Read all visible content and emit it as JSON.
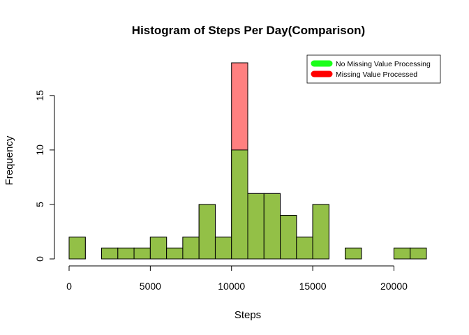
{
  "chart_data": {
    "type": "bar",
    "title": "Histogram of Steps Per Day(Comparison)",
    "xlabel": "Steps",
    "ylabel": "Frequency",
    "bin_width": 1000,
    "xlim": [
      0,
      22000
    ],
    "ylim": [
      0,
      18
    ],
    "x_ticks": [
      0,
      5000,
      10000,
      15000,
      20000
    ],
    "y_ticks": [
      0,
      5,
      10,
      15
    ],
    "bin_starts": [
      0,
      1000,
      2000,
      3000,
      4000,
      5000,
      6000,
      7000,
      8000,
      9000,
      10000,
      11000,
      12000,
      13000,
      14000,
      15000,
      16000,
      17000,
      18000,
      19000,
      20000,
      21000
    ],
    "series": [
      {
        "name": "No Missing Value Processing",
        "legend_color": "#1aff1a",
        "fill_color": "#93c047",
        "values": [
          2,
          0,
          1,
          1,
          1,
          2,
          1,
          2,
          5,
          2,
          10,
          6,
          6,
          4,
          2,
          5,
          0,
          1,
          0,
          0,
          1,
          1
        ]
      },
      {
        "name": "Missing Value Processed",
        "legend_color": "#ff0000",
        "fill_color": "#ff8080",
        "values": [
          2,
          0,
          1,
          1,
          1,
          2,
          1,
          2,
          5,
          2,
          18,
          6,
          6,
          4,
          2,
          5,
          0,
          1,
          0,
          0,
          1,
          1
        ]
      }
    ],
    "legend_position": "top-right",
    "grid": false
  }
}
